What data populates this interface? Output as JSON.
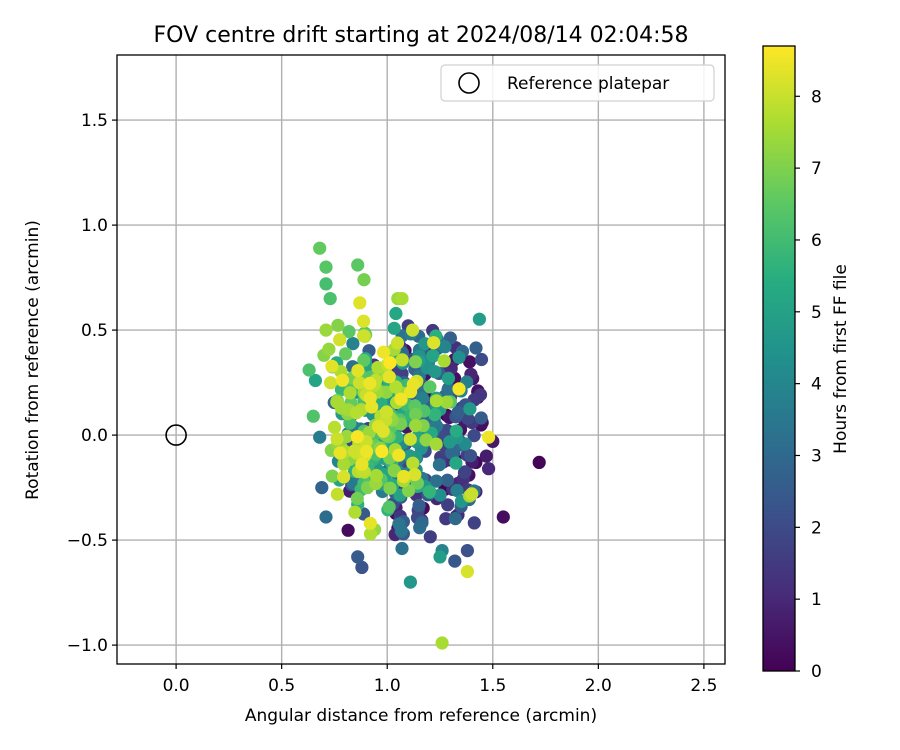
{
  "chart_data": {
    "type": "scatter",
    "title": "FOV centre drift starting at 2024/08/14 02:04:58",
    "xlabel": "Angular distance from reference (arcmin)",
    "ylabel": "Rotation from reference (arcmin)",
    "xlim": [
      -0.28,
      2.6
    ],
    "ylim": [
      -1.09,
      1.81
    ],
    "xticks": [
      0.0,
      0.5,
      1.0,
      1.5,
      2.0,
      2.5
    ],
    "xtick_labels": [
      "0.0",
      "0.5",
      "1.0",
      "1.5",
      "2.0",
      "2.5"
    ],
    "yticks": [
      -1.0,
      -0.5,
      0.0,
      0.5,
      1.0,
      1.5
    ],
    "ytick_labels": [
      "−1.0",
      "−0.5",
      "0.0",
      "0.5",
      "1.0",
      "1.5"
    ],
    "grid": true,
    "legend": {
      "placement": "top-right",
      "entries": [
        "Reference platepar"
      ]
    },
    "reference_point": {
      "x": 0.0,
      "y": 0.0,
      "label": "Reference platepar"
    },
    "colorbar": {
      "label": "Hours from first FF file",
      "range": [
        0,
        8.7
      ],
      "ticks": [
        0,
        1,
        2,
        3,
        4,
        5,
        6,
        7,
        8
      ],
      "tick_labels": [
        "0",
        "1",
        "2",
        "3",
        "4",
        "5",
        "6",
        "7",
        "8"
      ],
      "colormap": "viridis"
    },
    "point_cloud": {
      "count": 620,
      "x_center": 1.05,
      "x_sd": 0.17,
      "y_center": 0.05,
      "y_sd": 0.24,
      "drift_per_hour_x": -0.045,
      "drift_per_hour_y": 0.015
    },
    "points": [
      {
        "x": 1.72,
        "y": -0.13,
        "t": 0.1
      },
      {
        "x": 1.55,
        "y": -0.39,
        "t": 0.3
      },
      {
        "x": 1.5,
        "y": -0.03,
        "t": 0.6
      },
      {
        "x": 1.48,
        "y": -0.16,
        "t": 1.0
      },
      {
        "x": 1.47,
        "y": -0.1,
        "t": 0.7
      },
      {
        "x": 1.45,
        "y": 0.06,
        "t": 0.4
      },
      {
        "x": 1.43,
        "y": 0.21,
        "t": 0.3
      },
      {
        "x": 1.43,
        "y": 0.18,
        "t": 0.5
      },
      {
        "x": 1.42,
        "y": -0.27,
        "t": 0.9
      },
      {
        "x": 1.42,
        "y": -0.13,
        "t": 0.2
      },
      {
        "x": 1.38,
        "y": -0.55,
        "t": 2.2
      },
      {
        "x": 1.36,
        "y": -0.21,
        "t": 1.2
      },
      {
        "x": 1.35,
        "y": -0.34,
        "t": 2.6
      },
      {
        "x": 1.34,
        "y": 0.37,
        "t": 4.3
      },
      {
        "x": 1.32,
        "y": -0.6,
        "t": 2.4
      },
      {
        "x": 1.26,
        "y": -0.55,
        "t": 3.9
      },
      {
        "x": 1.25,
        "y": -0.58,
        "t": 4.8
      },
      {
        "x": 1.19,
        "y": 0.42,
        "t": 0.5
      },
      {
        "x": 1.12,
        "y": 0.36,
        "t": 2.0
      },
      {
        "x": 1.11,
        "y": -0.7,
        "t": 4.6
      },
      {
        "x": 1.07,
        "y": -0.54,
        "t": 3.3
      },
      {
        "x": 0.88,
        "y": -0.63,
        "t": 2.3
      },
      {
        "x": 0.86,
        "y": -0.58,
        "t": 2.5
      },
      {
        "x": 0.71,
        "y": -0.39,
        "t": 3.1
      },
      {
        "x": 0.69,
        "y": -0.25,
        "t": 2.8
      },
      {
        "x": 0.68,
        "y": -0.01,
        "t": 3.6
      },
      {
        "x": 1.38,
        "y": -0.65,
        "t": 8.2
      },
      {
        "x": 1.26,
        "y": -0.99,
        "t": 7.6
      },
      {
        "x": 0.68,
        "y": 0.89,
        "t": 6.6
      },
      {
        "x": 0.71,
        "y": 0.8,
        "t": 6.4
      },
      {
        "x": 0.86,
        "y": 0.81,
        "t": 6.5
      },
      {
        "x": 0.89,
        "y": 0.74,
        "t": 6.9
      },
      {
        "x": 0.71,
        "y": 0.72,
        "t": 6.1
      },
      {
        "x": 0.73,
        "y": 0.65,
        "t": 6.2
      },
      {
        "x": 1.05,
        "y": 0.65,
        "t": 7.4
      },
      {
        "x": 1.07,
        "y": 0.65,
        "t": 7.6
      },
      {
        "x": 0.87,
        "y": 0.63,
        "t": 8.3
      },
      {
        "x": 0.63,
        "y": 0.31,
        "t": 6.2
      },
      {
        "x": 0.66,
        "y": 0.26,
        "t": 5.1
      },
      {
        "x": 0.65,
        "y": 0.09,
        "t": 6.3
      },
      {
        "x": 1.34,
        "y": 0.22,
        "t": 8.6
      },
      {
        "x": 1.4,
        "y": -0.28,
        "t": 8.0
      },
      {
        "x": 1.39,
        "y": -0.29,
        "t": 7.6
      },
      {
        "x": 1.48,
        "y": -0.01,
        "t": 8.5
      },
      {
        "x": 0.92,
        "y": -0.42,
        "t": 8.4
      },
      {
        "x": 0.94,
        "y": -0.45,
        "t": 7.3
      },
      {
        "x": 1.22,
        "y": 0.44,
        "t": 8.3
      },
      {
        "x": 1.12,
        "y": 0.5,
        "t": 8.1
      },
      {
        "x": 0.7,
        "y": 0.38,
        "t": 7.1
      },
      {
        "x": 0.71,
        "y": 0.5,
        "t": 7.4
      }
    ]
  }
}
